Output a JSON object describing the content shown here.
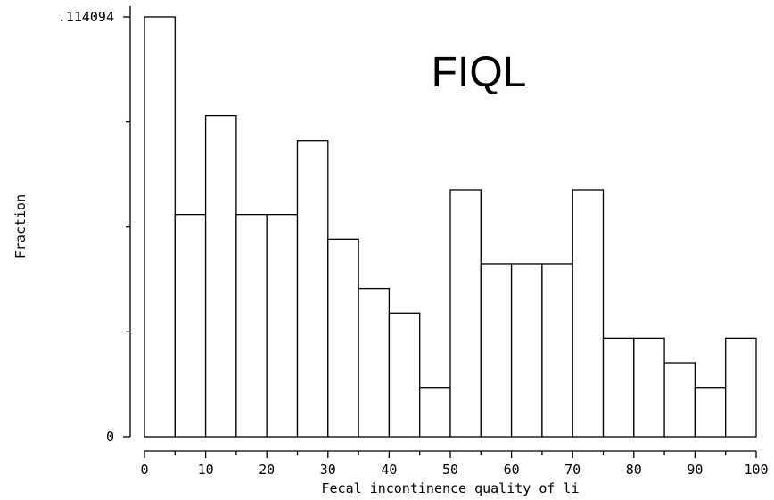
{
  "chart_data": {
    "type": "bar",
    "title": "FIQL",
    "xlabel": "Fecal incontinence quality of li",
    "ylabel": "Fraction",
    "bin_width": 5,
    "bin_starts": [
      0,
      5,
      10,
      15,
      20,
      25,
      30,
      35,
      40,
      45,
      50,
      55,
      60,
      65,
      70,
      75,
      80,
      85,
      90,
      95
    ],
    "values": [
      0.114094,
      0.0604,
      0.0873,
      0.0604,
      0.0604,
      0.0805,
      0.0537,
      0.0403,
      0.0336,
      0.0134,
      0.0671,
      0.047,
      0.047,
      0.047,
      0.0671,
      0.0268,
      0.0268,
      0.0201,
      0.0134,
      0.0268
    ],
    "xlim": [
      0,
      100
    ],
    "ylim": [
      0,
      0.114094
    ],
    "x_ticks": [
      "0",
      "10",
      "20",
      "30",
      "40",
      "50",
      "60",
      "70",
      "80",
      "90",
      "100"
    ],
    "y_tick_labels": [
      ".114094",
      "0"
    ],
    "y_minor_ticks": [
      0.0285,
      0.057,
      0.0856
    ],
    "grid": false
  }
}
